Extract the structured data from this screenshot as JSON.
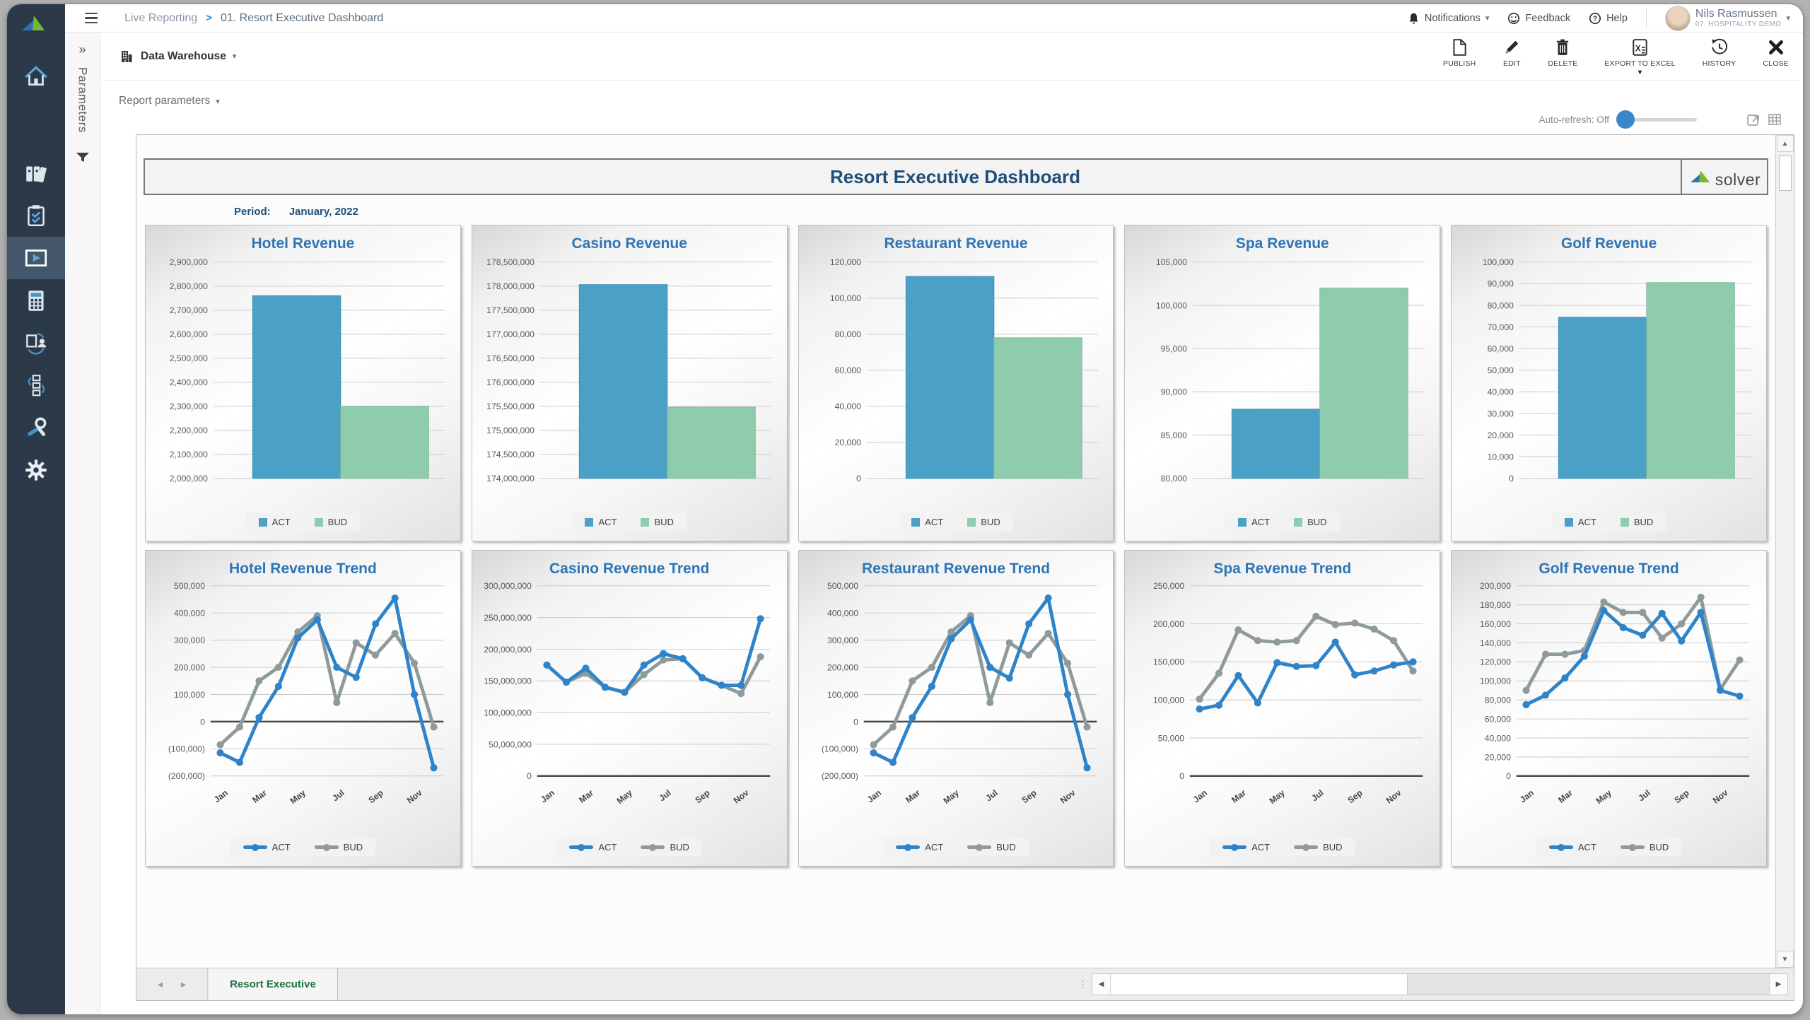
{
  "header": {
    "breadcrumb_root": "Live Reporting",
    "breadcrumb_sep": ">",
    "breadcrumb_current": "01. Resort Executive Dashboard",
    "notifications_label": "Notifications",
    "feedback_label": "Feedback",
    "help_label": "Help",
    "user": {
      "name": "Nils Rasmussen",
      "org": "07. Hospitality Demo"
    }
  },
  "sidebar": {
    "items": [
      {
        "icon": "home-icon",
        "active": false
      },
      {
        "icon": "report-archive-icon",
        "active": false
      },
      {
        "icon": "task-clipboard-icon",
        "active": false
      },
      {
        "icon": "live-reporting-icon",
        "active": true
      },
      {
        "icon": "budgeting-calculator-icon",
        "active": false
      },
      {
        "icon": "data-collaboration-icon",
        "active": false
      },
      {
        "icon": "workflow-icon",
        "active": false
      },
      {
        "icon": "admin-tools-icon",
        "active": false
      },
      {
        "icon": "settings-gear-icon",
        "active": false
      }
    ]
  },
  "parameters_panel": {
    "label": "Parameters"
  },
  "toolbar": {
    "source_label": "Data Warehouse",
    "actions": [
      "PUBLISH",
      "EDIT",
      "DELETE",
      "EXPORT TO EXCEL",
      "HISTORY",
      "CLOSE"
    ]
  },
  "report_bar": {
    "parameters_label": "Report parameters",
    "autorefresh_label": "Auto-refresh: Off"
  },
  "report": {
    "title": "Resort Executive Dashboard",
    "logo_text": "solver",
    "period_label": "Period:",
    "period_value": "January, 2022",
    "sheet_tab": "Resort Executive"
  },
  "colors": {
    "act_bar": "#4BA0C6",
    "bud_bar": "#8FCBAD",
    "act_line": "#2E83C9",
    "bud_line": "#8F9B9B"
  },
  "chart_data": [
    {
      "type": "bar",
      "title": "Hotel Revenue",
      "categories": [
        "ACT",
        "BUD"
      ],
      "values": [
        2760000,
        2300000
      ],
      "ylim": [
        2000000,
        2900000
      ],
      "ytick_step": 100000,
      "legend": [
        "ACT",
        "BUD"
      ]
    },
    {
      "type": "bar",
      "title": "Casino Revenue",
      "categories": [
        "ACT",
        "BUD"
      ],
      "values": [
        178030000,
        175480000
      ],
      "ylim": [
        174000000,
        178500000
      ],
      "ytick_step": 500000,
      "legend": [
        "ACT",
        "BUD"
      ]
    },
    {
      "type": "bar",
      "title": "Restaurant Revenue",
      "categories": [
        "ACT",
        "BUD"
      ],
      "values": [
        112000,
        78000
      ],
      "ylim": [
        0,
        120000
      ],
      "ytick_step": 20000,
      "legend": [
        "ACT",
        "BUD"
      ]
    },
    {
      "type": "bar",
      "title": "Spa Revenue",
      "categories": [
        "ACT",
        "BUD"
      ],
      "values": [
        88000,
        102000
      ],
      "ylim": [
        80000,
        105000
      ],
      "ytick_step": 5000,
      "legend": [
        "ACT",
        "BUD"
      ]
    },
    {
      "type": "bar",
      "title": "Golf Revenue",
      "categories": [
        "ACT",
        "BUD"
      ],
      "values": [
        74500,
        90500
      ],
      "ylim": [
        0,
        100000
      ],
      "ytick_step": 10000,
      "legend": [
        "ACT",
        "BUD"
      ]
    },
    {
      "type": "line",
      "title": "Hotel Revenue Trend",
      "x": [
        "Jan",
        "Feb",
        "Mar",
        "Apr",
        "May",
        "Jun",
        "Jul",
        "Aug",
        "Sep",
        "Oct",
        "Nov",
        "Dec"
      ],
      "x_label_every": 2,
      "series": [
        {
          "name": "ACT",
          "values": [
            -115000,
            -150000,
            15000,
            130000,
            308000,
            375000,
            200000,
            163000,
            360000,
            455000,
            100000,
            -170000
          ]
        },
        {
          "name": "BUD",
          "values": [
            -85000,
            -20000,
            150000,
            200000,
            330000,
            390000,
            70000,
            290000,
            245000,
            325000,
            215000,
            -20000
          ]
        }
      ],
      "ylim": [
        -200000,
        500000
      ],
      "ytick_step": 100000,
      "legend": [
        "ACT",
        "BUD"
      ]
    },
    {
      "type": "line",
      "title": "Casino Revenue Trend",
      "x": [
        "Jan",
        "Feb",
        "Mar",
        "Apr",
        "May",
        "Jun",
        "Jul",
        "Aug",
        "Sep",
        "Oct",
        "Nov",
        "Dec"
      ],
      "x_label_every": 2,
      "series": [
        {
          "name": "ACT",
          "values": [
            175000000,
            148000000,
            170000000,
            140000000,
            132000000,
            175000000,
            193000000,
            185000000,
            155000000,
            143000000,
            143000000,
            248000000
          ]
        },
        {
          "name": "BUD",
          "values": [
            175000000,
            148000000,
            162000000,
            140000000,
            132000000,
            160000000,
            183000000,
            185000000,
            155000000,
            143000000,
            130000000,
            188000000
          ]
        }
      ],
      "ylim": [
        0,
        300000000
      ],
      "ytick_step": 50000000,
      "legend": [
        "ACT",
        "BUD"
      ]
    },
    {
      "type": "line",
      "title": "Restaurant Revenue Trend",
      "x": [
        "Jan",
        "Feb",
        "Mar",
        "Apr",
        "May",
        "Jun",
        "Jul",
        "Aug",
        "Sep",
        "Oct",
        "Nov",
        "Dec"
      ],
      "x_label_every": 2,
      "series": [
        {
          "name": "ACT",
          "values": [
            -115000,
            -150000,
            15000,
            130000,
            305000,
            375000,
            200000,
            160000,
            360000,
            455000,
            100000,
            -170000
          ]
        },
        {
          "name": "BUD",
          "values": [
            -85000,
            -20000,
            150000,
            200000,
            330000,
            390000,
            70000,
            290000,
            245000,
            325000,
            215000,
            -20000
          ]
        }
      ],
      "ylim": [
        -200000,
        500000
      ],
      "ytick_step": 100000,
      "legend": [
        "ACT",
        "BUD"
      ]
    },
    {
      "type": "line",
      "title": "Spa Revenue Trend",
      "x": [
        "Jan",
        "Feb",
        "Mar",
        "Apr",
        "May",
        "Jun",
        "Jul",
        "Aug",
        "Sep",
        "Oct",
        "Nov",
        "Dec"
      ],
      "x_label_every": 2,
      "series": [
        {
          "name": "ACT",
          "values": [
            88000,
            93000,
            132000,
            96000,
            149000,
            144000,
            145000,
            176000,
            133000,
            138000,
            146000,
            150000
          ]
        },
        {
          "name": "BUD",
          "values": [
            101000,
            135000,
            192000,
            178000,
            176000,
            178000,
            210000,
            199000,
            201000,
            193000,
            178000,
            138000
          ]
        }
      ],
      "ylim": [
        0,
        250000
      ],
      "ytick_step": 50000,
      "legend": [
        "ACT",
        "BUD"
      ]
    },
    {
      "type": "line",
      "title": "Golf Revenue Trend",
      "x": [
        "Jan",
        "Feb",
        "Mar",
        "Apr",
        "May",
        "Jun",
        "Jul",
        "Aug",
        "Sep",
        "Oct",
        "Nov",
        "Dec"
      ],
      "x_label_every": 2,
      "series": [
        {
          "name": "ACT",
          "values": [
            75000,
            85000,
            103000,
            126000,
            174000,
            156000,
            148000,
            171000,
            142000,
            172000,
            90000,
            84000
          ]
        },
        {
          "name": "BUD",
          "values": [
            90000,
            128000,
            128000,
            132000,
            183000,
            172000,
            172000,
            145000,
            160000,
            188000,
            91000,
            122000
          ]
        }
      ],
      "ylim": [
        0,
        200000
      ],
      "ytick_step": 20000,
      "legend": [
        "ACT",
        "BUD"
      ]
    }
  ]
}
